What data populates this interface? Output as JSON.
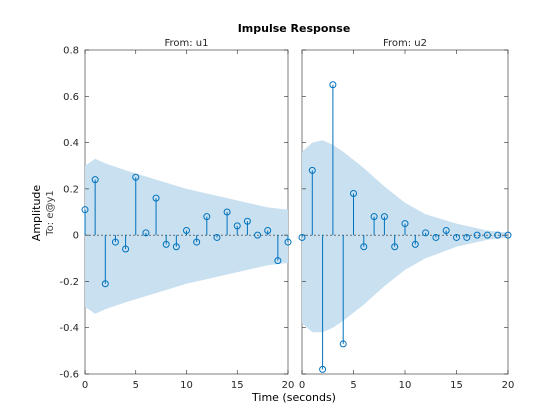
{
  "chart_data": {
    "type": "stem",
    "title": "Impulse Response",
    "xlabel": "Time (seconds)",
    "ylabel": "Amplitude",
    "ylabel_secondary": "To: e@y1",
    "ylim": [
      -0.6,
      0.8
    ],
    "yticks": [
      -0.6,
      -0.4,
      -0.2,
      0,
      0.2,
      0.4,
      0.6,
      0.8
    ],
    "yticklabels": [
      "-0.6",
      "-0.4",
      "-0.2",
      "0",
      "0.2",
      "0.4",
      "0.6",
      "0.8"
    ],
    "xlim": [
      0,
      20
    ],
    "xticks": [
      0,
      5,
      10,
      15,
      20
    ],
    "xticklabels": [
      "0",
      "5",
      "10",
      "15",
      "20"
    ],
    "band_color": "#c8e0f0",
    "stem_color": "#0072bd",
    "panels": [
      {
        "subtitle": "From: u1",
        "x": [
          0,
          1,
          2,
          3,
          4,
          5,
          6,
          7,
          8,
          9,
          10,
          11,
          12,
          13,
          14,
          15,
          16,
          17,
          18,
          19,
          20
        ],
        "values": [
          0.11,
          0.24,
          -0.21,
          -0.03,
          -0.06,
          0.25,
          0.01,
          0.16,
          -0.04,
          -0.05,
          0.02,
          -0.03,
          0.08,
          -0.01,
          0.1,
          0.04,
          0.06,
          0.0,
          0.02,
          -0.11,
          -0.03
        ],
        "band_x": [
          0,
          1,
          2,
          4,
          7,
          10,
          14,
          18,
          20
        ],
        "band_upper": [
          0.3,
          0.33,
          0.31,
          0.28,
          0.24,
          0.2,
          0.16,
          0.12,
          0.11
        ],
        "band_lower": [
          -0.31,
          -0.34,
          -0.32,
          -0.29,
          -0.25,
          -0.21,
          -0.17,
          -0.13,
          -0.12
        ]
      },
      {
        "subtitle": "From: u2",
        "x": [
          0,
          1,
          2,
          3,
          4,
          5,
          6,
          7,
          8,
          9,
          10,
          11,
          12,
          13,
          14,
          15,
          16,
          17,
          18,
          19,
          20
        ],
        "values": [
          -0.01,
          0.28,
          -0.58,
          0.65,
          -0.47,
          0.18,
          -0.05,
          0.08,
          0.08,
          -0.05,
          0.05,
          -0.04,
          0.01,
          -0.01,
          0.02,
          -0.01,
          -0.01,
          0.0,
          0.0,
          0.0,
          0.0
        ],
        "band_x": [
          0,
          1,
          2,
          3,
          4,
          6,
          8,
          10,
          12,
          15,
          18,
          20
        ],
        "band_upper": [
          0.36,
          0.4,
          0.41,
          0.39,
          0.36,
          0.29,
          0.21,
          0.14,
          0.09,
          0.05,
          0.02,
          0.01
        ],
        "band_lower": [
          -0.38,
          -0.42,
          -0.42,
          -0.4,
          -0.37,
          -0.3,
          -0.22,
          -0.15,
          -0.1,
          -0.05,
          -0.02,
          -0.01
        ]
      }
    ]
  }
}
